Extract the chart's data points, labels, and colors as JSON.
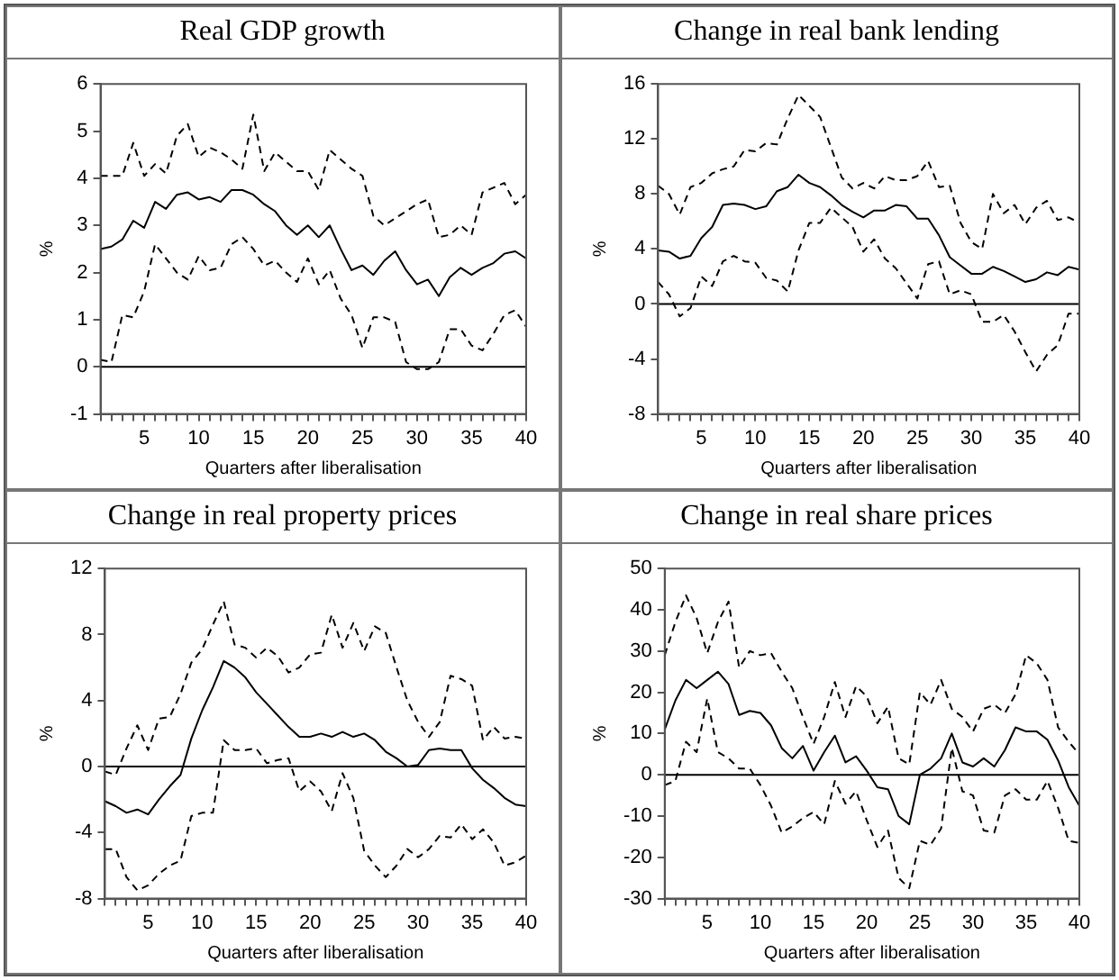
{
  "chart_data": [
    {
      "type": "line",
      "title": "Real GDP growth",
      "xlabel": "Quarters after liberalisation",
      "ylabel": "%",
      "grid": false,
      "legend": false,
      "marker": "none",
      "x": [
        1,
        2,
        3,
        4,
        5,
        6,
        7,
        8,
        9,
        10,
        11,
        12,
        13,
        14,
        15,
        16,
        17,
        18,
        19,
        20,
        21,
        22,
        23,
        24,
        25,
        26,
        27,
        28,
        29,
        30,
        31,
        32,
        33,
        34,
        35,
        36,
        37,
        38,
        39,
        40
      ],
      "xlim": [
        1,
        40
      ],
      "ylim": [
        -1,
        6
      ],
      "yticks": [
        -1,
        0,
        1,
        2,
        3,
        4,
        5,
        6
      ],
      "xticks": [
        {
          "value": 1,
          "label": null
        },
        {
          "value": 2,
          "label": null
        },
        {
          "value": 3,
          "label": null
        },
        {
          "value": 4,
          "label": null
        },
        5,
        {
          "value": 6,
          "label": null
        },
        {
          "value": 7,
          "label": null
        },
        {
          "value": 8,
          "label": null
        },
        {
          "value": 9,
          "label": null
        },
        10,
        {
          "value": 11,
          "label": null
        },
        {
          "value": 12,
          "label": null
        },
        {
          "value": 13,
          "label": null
        },
        {
          "value": 14,
          "label": null
        },
        15,
        {
          "value": 16,
          "label": null
        },
        {
          "value": 17,
          "label": null
        },
        {
          "value": 18,
          "label": null
        },
        {
          "value": 19,
          "label": null
        },
        20,
        {
          "value": 21,
          "label": null
        },
        {
          "value": 22,
          "label": null
        },
        {
          "value": 23,
          "label": null
        },
        {
          "value": 24,
          "label": null
        },
        25,
        {
          "value": 26,
          "label": null
        },
        {
          "value": 27,
          "label": null
        },
        {
          "value": 28,
          "label": null
        },
        {
          "value": 29,
          "label": null
        },
        30,
        {
          "value": 31,
          "label": null
        },
        {
          "value": 32,
          "label": null
        },
        {
          "value": 33,
          "label": null
        },
        {
          "value": 34,
          "label": null
        },
        35,
        {
          "value": 36,
          "label": null
        },
        {
          "value": 37,
          "label": null
        },
        {
          "value": 38,
          "label": null
        },
        {
          "value": 39,
          "label": null
        },
        40
      ],
      "ref_lines": [
        {
          "axis": "y",
          "value": 0,
          "color": "#000000"
        }
      ],
      "series": [
        {
          "color": "#000000",
          "line_style": "solid",
          "values": [
            2.5,
            2.55,
            2.7,
            3.1,
            2.95,
            3.5,
            3.35,
            3.65,
            3.7,
            3.55,
            3.6,
            3.5,
            3.75,
            3.75,
            3.65,
            3.45,
            3.3,
            3.0,
            2.8,
            3.0,
            2.75,
            3.0,
            2.5,
            2.05,
            2.15,
            1.95,
            2.25,
            2.45,
            2.05,
            1.75,
            1.85,
            1.5,
            1.9,
            2.1,
            1.95,
            2.1,
            2.2,
            2.4,
            2.45,
            2.3
          ]
        },
        {
          "color": "#000000",
          "line_style": "dashed",
          "values": [
            4.05,
            4.05,
            4.05,
            4.75,
            4.05,
            4.3,
            4.1,
            4.9,
            5.15,
            4.45,
            4.65,
            4.55,
            4.4,
            4.2,
            5.35,
            4.15,
            4.55,
            4.35,
            4.15,
            4.15,
            3.75,
            4.6,
            4.4,
            4.2,
            4.05,
            3.2,
            3.0,
            3.15,
            3.3,
            3.45,
            3.55,
            2.75,
            2.8,
            3.0,
            2.8,
            3.7,
            3.8,
            3.9,
            3.45,
            3.65
          ]
        },
        {
          "color": "#000000",
          "line_style": "dashed",
          "values": [
            0.15,
            0.1,
            1.1,
            1.05,
            1.6,
            2.6,
            2.3,
            2.0,
            1.85,
            2.35,
            2.05,
            2.1,
            2.6,
            2.75,
            2.5,
            2.15,
            2.25,
            2.0,
            1.8,
            2.3,
            1.75,
            2.05,
            1.45,
            1.1,
            0.4,
            1.05,
            1.05,
            0.95,
            0.1,
            -0.05,
            -0.05,
            0.1,
            0.8,
            0.8,
            0.45,
            0.35,
            0.7,
            1.1,
            1.2,
            0.85
          ]
        }
      ]
    },
    {
      "type": "line",
      "title": "Change in real bank lending",
      "xlabel": "Quarters after liberalisation",
      "ylabel": "%",
      "grid": false,
      "legend": false,
      "marker": "none",
      "x": [
        1,
        2,
        3,
        4,
        5,
        6,
        7,
        8,
        9,
        10,
        11,
        12,
        13,
        14,
        15,
        16,
        17,
        18,
        19,
        20,
        21,
        22,
        23,
        24,
        25,
        26,
        27,
        28,
        29,
        30,
        31,
        32,
        33,
        34,
        35,
        36,
        37,
        38,
        39,
        40
      ],
      "xlim": [
        1,
        40
      ],
      "ylim": [
        -8,
        16
      ],
      "yticks": [
        -8,
        -4,
        0,
        4,
        8,
        12,
        16
      ],
      "xticks": [
        {
          "value": 1,
          "label": null
        },
        {
          "value": 2,
          "label": null
        },
        {
          "value": 3,
          "label": null
        },
        {
          "value": 4,
          "label": null
        },
        5,
        {
          "value": 6,
          "label": null
        },
        {
          "value": 7,
          "label": null
        },
        {
          "value": 8,
          "label": null
        },
        {
          "value": 9,
          "label": null
        },
        10,
        {
          "value": 11,
          "label": null
        },
        {
          "value": 12,
          "label": null
        },
        {
          "value": 13,
          "label": null
        },
        {
          "value": 14,
          "label": null
        },
        15,
        {
          "value": 16,
          "label": null
        },
        {
          "value": 17,
          "label": null
        },
        {
          "value": 18,
          "label": null
        },
        {
          "value": 19,
          "label": null
        },
        20,
        {
          "value": 21,
          "label": null
        },
        {
          "value": 22,
          "label": null
        },
        {
          "value": 23,
          "label": null
        },
        {
          "value": 24,
          "label": null
        },
        25,
        {
          "value": 26,
          "label": null
        },
        {
          "value": 27,
          "label": null
        },
        {
          "value": 28,
          "label": null
        },
        {
          "value": 29,
          "label": null
        },
        30,
        {
          "value": 31,
          "label": null
        },
        {
          "value": 32,
          "label": null
        },
        {
          "value": 33,
          "label": null
        },
        {
          "value": 34,
          "label": null
        },
        35,
        {
          "value": 36,
          "label": null
        },
        {
          "value": 37,
          "label": null
        },
        {
          "value": 38,
          "label": null
        },
        {
          "value": 39,
          "label": null
        },
        40
      ],
      "ref_lines": [
        {
          "axis": "y",
          "value": 0,
          "color": "#000000"
        }
      ],
      "series": [
        {
          "color": "#000000",
          "line_style": "solid",
          "values": [
            3.9,
            3.8,
            3.3,
            3.5,
            4.8,
            5.6,
            7.2,
            7.3,
            7.2,
            6.9,
            7.1,
            8.2,
            8.5,
            9.4,
            8.8,
            8.5,
            7.9,
            7.2,
            6.7,
            6.3,
            6.8,
            6.8,
            7.2,
            7.1,
            6.2,
            6.2,
            5.0,
            3.4,
            2.8,
            2.2,
            2.2,
            2.7,
            2.4,
            2.0,
            1.6,
            1.8,
            2.3,
            2.1,
            2.7,
            2.5
          ]
        },
        {
          "color": "#000000",
          "line_style": "dashed",
          "values": [
            8.6,
            8.0,
            6.5,
            8.5,
            8.8,
            9.5,
            9.8,
            10.0,
            11.2,
            11.1,
            11.7,
            11.6,
            13.5,
            15.2,
            14.4,
            13.6,
            11.4,
            9.2,
            8.4,
            8.8,
            8.4,
            9.3,
            9.0,
            9.0,
            9.3,
            10.4,
            8.5,
            8.6,
            5.9,
            4.5,
            4.0,
            8.0,
            6.6,
            7.2,
            5.8,
            7.0,
            7.5,
            6.1,
            6.3,
            5.9
          ]
        },
        {
          "color": "#000000",
          "line_style": "dashed",
          "values": [
            1.6,
            0.7,
            -0.9,
            -0.3,
            2.0,
            1.3,
            3.1,
            3.5,
            3.1,
            3.0,
            1.9,
            1.7,
            0.9,
            3.9,
            5.9,
            5.9,
            7.0,
            6.3,
            5.6,
            3.8,
            4.7,
            3.3,
            2.6,
            1.5,
            0.4,
            2.9,
            3.1,
            0.7,
            1.0,
            0.7,
            -1.3,
            -1.3,
            -0.8,
            -2.0,
            -3.5,
            -4.9,
            -3.7,
            -3.0,
            -0.7,
            -0.7
          ]
        }
      ]
    },
    {
      "type": "line",
      "title": "Change in real property prices",
      "xlabel": "Quarters after liberalisation",
      "ylabel": "%",
      "grid": false,
      "legend": false,
      "marker": "none",
      "x": [
        1,
        2,
        3,
        4,
        5,
        6,
        7,
        8,
        9,
        10,
        11,
        12,
        13,
        14,
        15,
        16,
        17,
        18,
        19,
        20,
        21,
        22,
        23,
        24,
        25,
        26,
        27,
        28,
        29,
        30,
        31,
        32,
        33,
        34,
        35,
        36,
        37,
        38,
        39,
        40
      ],
      "xlim": [
        1,
        40
      ],
      "ylim": [
        -8,
        12
      ],
      "yticks": [
        -8,
        -4,
        0,
        4,
        8,
        12
      ],
      "xticks": [
        {
          "value": 1,
          "label": null
        },
        {
          "value": 2,
          "label": null
        },
        {
          "value": 3,
          "label": null
        },
        {
          "value": 4,
          "label": null
        },
        5,
        {
          "value": 6,
          "label": null
        },
        {
          "value": 7,
          "label": null
        },
        {
          "value": 8,
          "label": null
        },
        {
          "value": 9,
          "label": null
        },
        10,
        {
          "value": 11,
          "label": null
        },
        {
          "value": 12,
          "label": null
        },
        {
          "value": 13,
          "label": null
        },
        {
          "value": 14,
          "label": null
        },
        15,
        {
          "value": 16,
          "label": null
        },
        {
          "value": 17,
          "label": null
        },
        {
          "value": 18,
          "label": null
        },
        {
          "value": 19,
          "label": null
        },
        20,
        {
          "value": 21,
          "label": null
        },
        {
          "value": 22,
          "label": null
        },
        {
          "value": 23,
          "label": null
        },
        {
          "value": 24,
          "label": null
        },
        25,
        {
          "value": 26,
          "label": null
        },
        {
          "value": 27,
          "label": null
        },
        {
          "value": 28,
          "label": null
        },
        {
          "value": 29,
          "label": null
        },
        30,
        {
          "value": 31,
          "label": null
        },
        {
          "value": 32,
          "label": null
        },
        {
          "value": 33,
          "label": null
        },
        {
          "value": 34,
          "label": null
        },
        35,
        {
          "value": 36,
          "label": null
        },
        {
          "value": 37,
          "label": null
        },
        {
          "value": 38,
          "label": null
        },
        {
          "value": 39,
          "label": null
        },
        40
      ],
      "ref_lines": [
        {
          "axis": "y",
          "value": 0,
          "color": "#000000"
        }
      ],
      "series": [
        {
          "color": "#000000",
          "line_style": "solid",
          "values": [
            -2.1,
            -2.4,
            -2.8,
            -2.6,
            -2.9,
            -2.0,
            -1.2,
            -0.5,
            1.7,
            3.4,
            4.8,
            6.4,
            6.0,
            5.4,
            4.5,
            3.8,
            3.1,
            2.4,
            1.8,
            1.8,
            2.0,
            1.8,
            2.1,
            1.8,
            2.0,
            1.6,
            0.9,
            0.5,
            0.0,
            0.1,
            1.0,
            1.1,
            1.0,
            1.0,
            -0.1,
            -0.8,
            -1.3,
            -1.9,
            -2.3,
            -2.4
          ]
        },
        {
          "color": "#000000",
          "line_style": "dashed",
          "values": [
            -0.3,
            -0.5,
            1.1,
            2.5,
            1.0,
            2.9,
            3.0,
            4.4,
            6.3,
            7.1,
            8.6,
            10.0,
            7.4,
            7.2,
            6.6,
            7.2,
            6.7,
            5.7,
            6.0,
            6.8,
            6.9,
            9.2,
            7.2,
            8.7,
            7.0,
            8.5,
            8.1,
            6.0,
            4.0,
            2.7,
            1.8,
            2.7,
            5.5,
            5.3,
            4.9,
            1.6,
            2.4,
            1.7,
            1.8,
            1.7
          ]
        },
        {
          "color": "#000000",
          "line_style": "dashed",
          "values": [
            -5.0,
            -5.0,
            -6.7,
            -7.5,
            -7.2,
            -6.5,
            -6.0,
            -5.7,
            -3.0,
            -2.8,
            -2.8,
            1.6,
            1.0,
            1.0,
            1.1,
            0.2,
            0.4,
            0.5,
            -1.5,
            -0.9,
            -1.5,
            -2.7,
            -0.4,
            -1.9,
            -5.1,
            -6.0,
            -6.7,
            -6.0,
            -5.0,
            -5.5,
            -5.0,
            -4.2,
            -4.3,
            -3.5,
            -4.4,
            -3.8,
            -4.6,
            -6.0,
            -5.8,
            -5.4
          ]
        }
      ]
    },
    {
      "type": "line",
      "title": "Change in real share prices",
      "xlabel": "Quarters after liberalisation",
      "ylabel": "%",
      "grid": false,
      "legend": false,
      "marker": "none",
      "x": [
        1,
        2,
        3,
        4,
        5,
        6,
        7,
        8,
        9,
        10,
        11,
        12,
        13,
        14,
        15,
        16,
        17,
        18,
        19,
        20,
        21,
        22,
        23,
        24,
        25,
        26,
        27,
        28,
        29,
        30,
        31,
        32,
        33,
        34,
        35,
        36,
        37,
        38,
        39,
        40
      ],
      "xlim": [
        1,
        40
      ],
      "ylim": [
        -30,
        50
      ],
      "yticks": [
        -30,
        -20,
        -10,
        0,
        10,
        20,
        30,
        40,
        50
      ],
      "xticks": [
        {
          "value": 1,
          "label": null
        },
        {
          "value": 2,
          "label": null
        },
        {
          "value": 3,
          "label": null
        },
        {
          "value": 4,
          "label": null
        },
        5,
        {
          "value": 6,
          "label": null
        },
        {
          "value": 7,
          "label": null
        },
        {
          "value": 8,
          "label": null
        },
        {
          "value": 9,
          "label": null
        },
        10,
        {
          "value": 11,
          "label": null
        },
        {
          "value": 12,
          "label": null
        },
        {
          "value": 13,
          "label": null
        },
        {
          "value": 14,
          "label": null
        },
        15,
        {
          "value": 16,
          "label": null
        },
        {
          "value": 17,
          "label": null
        },
        {
          "value": 18,
          "label": null
        },
        {
          "value": 19,
          "label": null
        },
        20,
        {
          "value": 21,
          "label": null
        },
        {
          "value": 22,
          "label": null
        },
        {
          "value": 23,
          "label": null
        },
        {
          "value": 24,
          "label": null
        },
        25,
        {
          "value": 26,
          "label": null
        },
        {
          "value": 27,
          "label": null
        },
        {
          "value": 28,
          "label": null
        },
        {
          "value": 29,
          "label": null
        },
        30,
        {
          "value": 31,
          "label": null
        },
        {
          "value": 32,
          "label": null
        },
        {
          "value": 33,
          "label": null
        },
        {
          "value": 34,
          "label": null
        },
        35,
        {
          "value": 36,
          "label": null
        },
        {
          "value": 37,
          "label": null
        },
        {
          "value": 38,
          "label": null
        },
        {
          "value": 39,
          "label": null
        },
        40
      ],
      "ref_lines": [
        {
          "axis": "y",
          "value": 0,
          "color": "#000000"
        }
      ],
      "series": [
        {
          "color": "#000000",
          "line_style": "solid",
          "values": [
            11,
            18,
            23,
            21,
            23,
            25,
            22,
            14.5,
            15.5,
            15,
            12,
            6.5,
            4,
            7,
            1,
            5.5,
            9.5,
            3,
            4.5,
            1,
            -3,
            -3.5,
            -10,
            -12,
            0,
            1.5,
            4,
            10,
            3,
            2,
            4,
            2,
            6,
            11.5,
            10.5,
            10.5,
            8.5,
            3.5,
            -3,
            -7.5
          ]
        },
        {
          "color": "#000000",
          "line_style": "dashed",
          "values": [
            29,
            37,
            43.5,
            38,
            29.5,
            37,
            42,
            26,
            30,
            29,
            29.5,
            25,
            21,
            14,
            7.5,
            14,
            22.5,
            14,
            21.5,
            19,
            12.5,
            16.5,
            4,
            2.5,
            20,
            17,
            23,
            16,
            14,
            10.5,
            16,
            17,
            15,
            19.5,
            29,
            27,
            23,
            11.5,
            8,
            5
          ]
        },
        {
          "color": "#000000",
          "line_style": "dashed",
          "values": [
            -2.5,
            -1.5,
            8,
            5.5,
            18.5,
            5.5,
            4,
            1.5,
            1.5,
            -2.5,
            -7.5,
            -14,
            -12.5,
            -10.5,
            -9,
            -12,
            -1.5,
            -7,
            -4,
            -11,
            -17.5,
            -13.5,
            -25,
            -27.5,
            -16,
            -17,
            -13,
            6.5,
            -4,
            -5,
            -13.5,
            -14,
            -5,
            -3.5,
            -6,
            -6,
            -1.5,
            -8,
            -16,
            -16.5
          ]
        }
      ]
    }
  ]
}
